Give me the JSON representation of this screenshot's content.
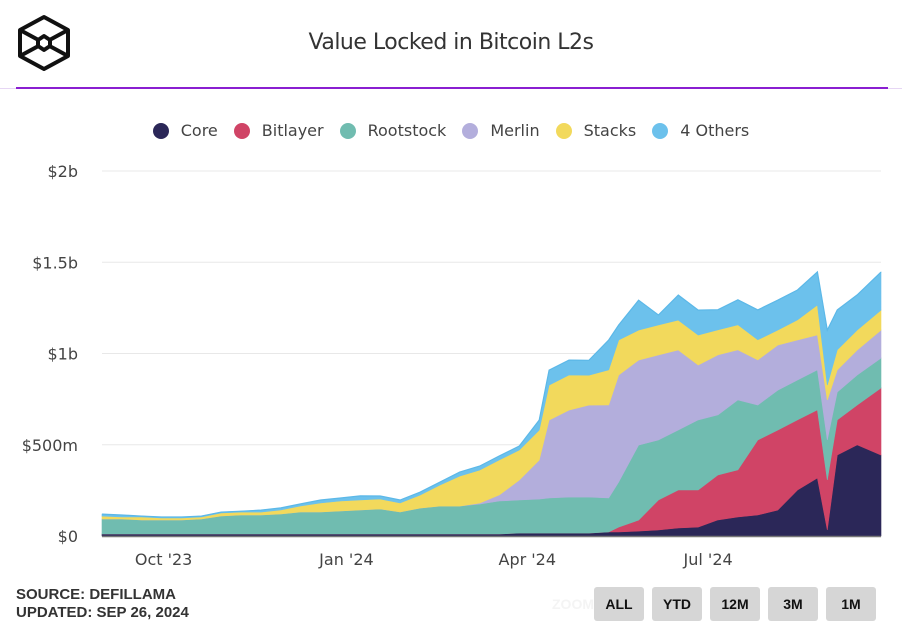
{
  "header": {
    "title": "Value Locked in Bitcoin L2s",
    "logo": "cube-logo-icon"
  },
  "footer": {
    "source": "SOURCE: DEFILLAMA",
    "updated": "UPDATED: SEP 26, 2024",
    "zoom_label": "ZOOM",
    "range_buttons": [
      "ALL",
      "YTD",
      "12M",
      "3M",
      "1M"
    ]
  },
  "chart_data": {
    "type": "area",
    "stacked": true,
    "title": "Value Locked in Bitcoin L2s",
    "xlabel": "",
    "ylabel": "",
    "unit": "$m",
    "ylim": [
      0,
      2000
    ],
    "yticks": [
      0,
      500,
      1000,
      1500,
      2000
    ],
    "ytick_labels": [
      "$0",
      "$500m",
      "$1b",
      "$1.5b",
      "$2b"
    ],
    "xlim": [
      "2023-08-31",
      "2024-09-26"
    ],
    "xticks": [
      "2023-10-01",
      "2024-01-01",
      "2024-04-01",
      "2024-07-01"
    ],
    "xtick_labels": [
      "Oct '23",
      "Jan '24",
      "Apr '24",
      "Jul '24"
    ],
    "grid": true,
    "legend_position": "top-center",
    "x": [
      "2023-08-31",
      "2023-09-10",
      "2023-09-20",
      "2023-09-30",
      "2023-10-10",
      "2023-10-20",
      "2023-10-30",
      "2023-11-09",
      "2023-11-19",
      "2023-11-29",
      "2023-12-09",
      "2023-12-19",
      "2023-12-29",
      "2024-01-08",
      "2024-01-18",
      "2024-01-28",
      "2024-02-07",
      "2024-02-17",
      "2024-02-27",
      "2024-03-08",
      "2024-03-18",
      "2024-03-28",
      "2024-04-07",
      "2024-04-12",
      "2024-04-22",
      "2024-05-02",
      "2024-05-12",
      "2024-05-17",
      "2024-05-27",
      "2024-06-06",
      "2024-06-16",
      "2024-06-26",
      "2024-07-06",
      "2024-07-16",
      "2024-07-26",
      "2024-08-05",
      "2024-08-15",
      "2024-08-25",
      "2024-08-30",
      "2024-09-04",
      "2024-09-14",
      "2024-09-26"
    ],
    "series": [
      {
        "name": "Core",
        "color": "#2b2758",
        "values": [
          11,
          11,
          11,
          11,
          11,
          11,
          11,
          11,
          11,
          11,
          11,
          11,
          11,
          11,
          11,
          11,
          11,
          11,
          11,
          11,
          11,
          16,
          16,
          16,
          16,
          16,
          22,
          22,
          27,
          33,
          44,
          49,
          88,
          104,
          115,
          142,
          252,
          318,
          33,
          444,
          499,
          444
        ]
      },
      {
        "name": "Bitlayer",
        "color": "#d04466",
        "values": [
          0,
          0,
          0,
          0,
          0,
          0,
          0,
          0,
          0,
          0,
          0,
          0,
          0,
          0,
          0,
          0,
          0,
          0,
          0,
          0,
          0,
          0,
          0,
          0,
          0,
          0,
          0,
          27,
          60,
          164,
          208,
          203,
          247,
          258,
          411,
          438,
          384,
          373,
          274,
          192,
          219,
          367
        ]
      },
      {
        "name": "Rootstock",
        "color": "#70bcb0",
        "values": [
          82,
          82,
          77,
          77,
          77,
          82,
          99,
          104,
          104,
          110,
          121,
          121,
          126,
          132,
          137,
          121,
          142,
          153,
          153,
          164,
          181,
          181,
          186,
          192,
          197,
          197,
          186,
          247,
          411,
          329,
          329,
          384,
          329,
          384,
          192,
          219,
          219,
          219,
          219,
          153,
          164,
          164
        ]
      },
      {
        "name": "Merlin",
        "color": "#b3aedc",
        "values": [
          0,
          0,
          0,
          0,
          0,
          0,
          0,
          0,
          0,
          0,
          0,
          0,
          0,
          0,
          0,
          0,
          0,
          0,
          0,
          5,
          33,
          110,
          214,
          427,
          477,
          504,
          510,
          586,
          466,
          466,
          438,
          301,
          329,
          274,
          247,
          247,
          219,
          192,
          219,
          121,
          137,
          153
        ]
      },
      {
        "name": "Stacks",
        "color": "#f2d95c",
        "values": [
          16,
          11,
          16,
          11,
          11,
          11,
          16,
          16,
          16,
          22,
          33,
          49,
          55,
          55,
          55,
          49,
          71,
          115,
          164,
          181,
          192,
          164,
          164,
          192,
          192,
          164,
          192,
          192,
          164,
          164,
          164,
          164,
          137,
          137,
          110,
          82,
          110,
          164,
          82,
          110,
          110,
          110
        ]
      },
      {
        "name": "4 Others",
        "color": "#6cc1ec",
        "values": [
          11,
          11,
          5,
          5,
          5,
          5,
          5,
          5,
          11,
          11,
          11,
          16,
          16,
          22,
          16,
          16,
          16,
          16,
          22,
          22,
          22,
          22,
          55,
          82,
          82,
          82,
          164,
          82,
          164,
          55,
          137,
          137,
          110,
          137,
          164,
          164,
          164,
          181,
          301,
          219,
          192,
          208
        ]
      }
    ]
  }
}
